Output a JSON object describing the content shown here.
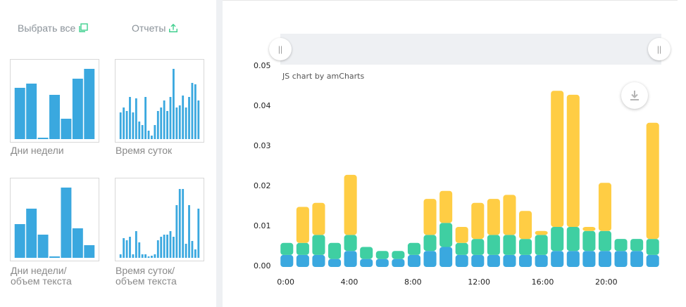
{
  "actions": {
    "select_all": "Выбрать все",
    "reports": "Отчеты"
  },
  "thumbnails": [
    {
      "label": "Дни недели",
      "values": [
        0.73,
        0.79,
        0.02,
        0.63,
        0.29,
        0.86,
        1.0
      ]
    },
    {
      "label": "Время суток",
      "values": [
        0.38,
        0.45,
        0.4,
        0.6,
        0.38,
        0.58,
        0.25,
        0.2,
        0.6,
        0.12,
        0.05,
        0.2,
        0.4,
        0.45,
        0.55,
        0.4,
        0.6,
        1.0,
        0.45,
        0.48,
        0.62,
        0.45,
        0.6,
        0.8,
        0.78,
        0.55
      ]
    },
    {
      "label_line1": "Дни недели/",
      "label_line2": "объем текста",
      "values": [
        0.48,
        0.7,
        0.33,
        0.02,
        1.0,
        0.42,
        0.18
      ]
    },
    {
      "label_line1": "Время суток/",
      "label_line2": "объем текста",
      "values": [
        0.05,
        0.28,
        0.25,
        0.3,
        0.05,
        0.38,
        0.22,
        0.05,
        0.05,
        0.02,
        0.03,
        0.05,
        0.25,
        0.3,
        0.33,
        0.33,
        0.38,
        0.3,
        0.75,
        0.98,
        0.98,
        0.2,
        0.75,
        0.24,
        0.12,
        0.7
      ]
    }
  ],
  "chart_credit": "JS chart by amCharts",
  "chart_data": {
    "type": "bar",
    "stacked": true,
    "categories": [
      "0:00",
      "1:00",
      "2:00",
      "3:00",
      "4:00",
      "5:00",
      "6:00",
      "7:00",
      "8:00",
      "9:00",
      "10:00",
      "11:00",
      "12:00",
      "13:00",
      "14:00",
      "15:00",
      "16:00",
      "17:00",
      "18:00",
      "19:00",
      "20:00",
      "21:00",
      "22:00",
      "23:00"
    ],
    "x_tick_labels": [
      "0:00",
      "4:00",
      "8:00",
      "12:00",
      "16:00",
      "20:00"
    ],
    "ylim": [
      0,
      0.05
    ],
    "y_tick_labels": [
      "0.00",
      "0.01",
      "0.02",
      "0.03",
      "0.04",
      "0.05"
    ],
    "grid": false,
    "series": [
      {
        "color": "#3aa8df",
        "values": [
          0.003,
          0.003,
          0.003,
          0.002,
          0.004,
          0.002,
          0.002,
          0.002,
          0.003,
          0.004,
          0.005,
          0.003,
          0.003,
          0.003,
          0.003,
          0.003,
          0.003,
          0.004,
          0.004,
          0.004,
          0.004,
          0.004,
          0.004,
          0.003
        ]
      },
      {
        "color": "#3fcfa2",
        "values": [
          0.003,
          0.003,
          0.005,
          0.004,
          0.004,
          0.003,
          0.002,
          0.002,
          0.003,
          0.004,
          0.006,
          0.003,
          0.004,
          0.005,
          0.005,
          0.004,
          0.005,
          0.006,
          0.006,
          0.005,
          0.005,
          0.003,
          0.003,
          0.004
        ]
      },
      {
        "color": "#ffcd44",
        "values": [
          0.0,
          0.009,
          0.008,
          0.0,
          0.015,
          0.0,
          0.0,
          0.0,
          0.0,
          0.009,
          0.008,
          0.004,
          0.009,
          0.009,
          0.01,
          0.007,
          0.001,
          0.034,
          0.033,
          0.001,
          0.012,
          0.0,
          0.0,
          0.029
        ]
      }
    ]
  }
}
